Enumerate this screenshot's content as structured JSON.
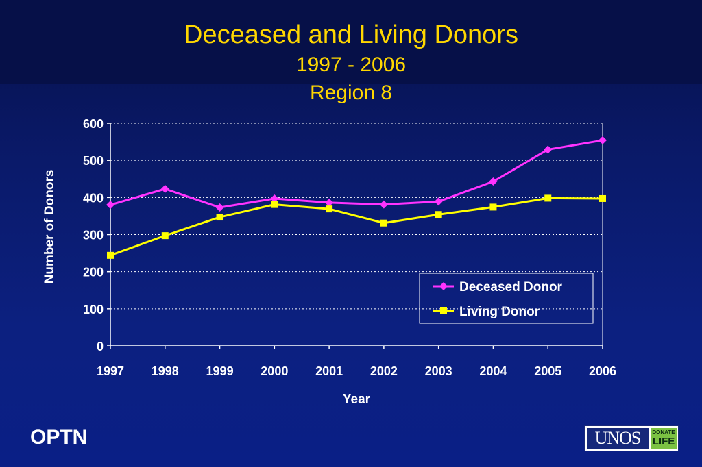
{
  "title": {
    "line1": "Deceased and Living Donors",
    "line2": "1997 - 2006",
    "line3": "Region 8"
  },
  "footer": {
    "left_label": "OPTN",
    "logo_text": "UNOS",
    "logo_badge_line1": "DONATE",
    "logo_badge_line2": "LIFE"
  },
  "colors": {
    "title": "#ffd700",
    "deceased": "#ff33ff",
    "living": "#ffff00",
    "axis": "#ffffff",
    "background": "#0a1a6a"
  },
  "chart_data": {
    "type": "line",
    "title": "",
    "xlabel": "Year",
    "ylabel": "Number of Donors",
    "ylim": [
      0,
      600
    ],
    "yticks": [
      0,
      100,
      200,
      300,
      400,
      500,
      600
    ],
    "grid": "horizontal dotted",
    "legend_position": "bottom-right",
    "categories": [
      "1997",
      "1998",
      "1999",
      "2000",
      "2001",
      "2002",
      "2003",
      "2004",
      "2005",
      "2006"
    ],
    "series": [
      {
        "name": "Deceased Donor",
        "marker": "diamond",
        "color": "#ff33ff",
        "values": [
          380,
          423,
          373,
          397,
          386,
          381,
          389,
          443,
          529,
          554
        ]
      },
      {
        "name": "Living Donor",
        "marker": "square",
        "color": "#ffff00",
        "values": [
          244,
          297,
          347,
          381,
          369,
          331,
          354,
          374,
          398,
          397
        ]
      }
    ]
  }
}
